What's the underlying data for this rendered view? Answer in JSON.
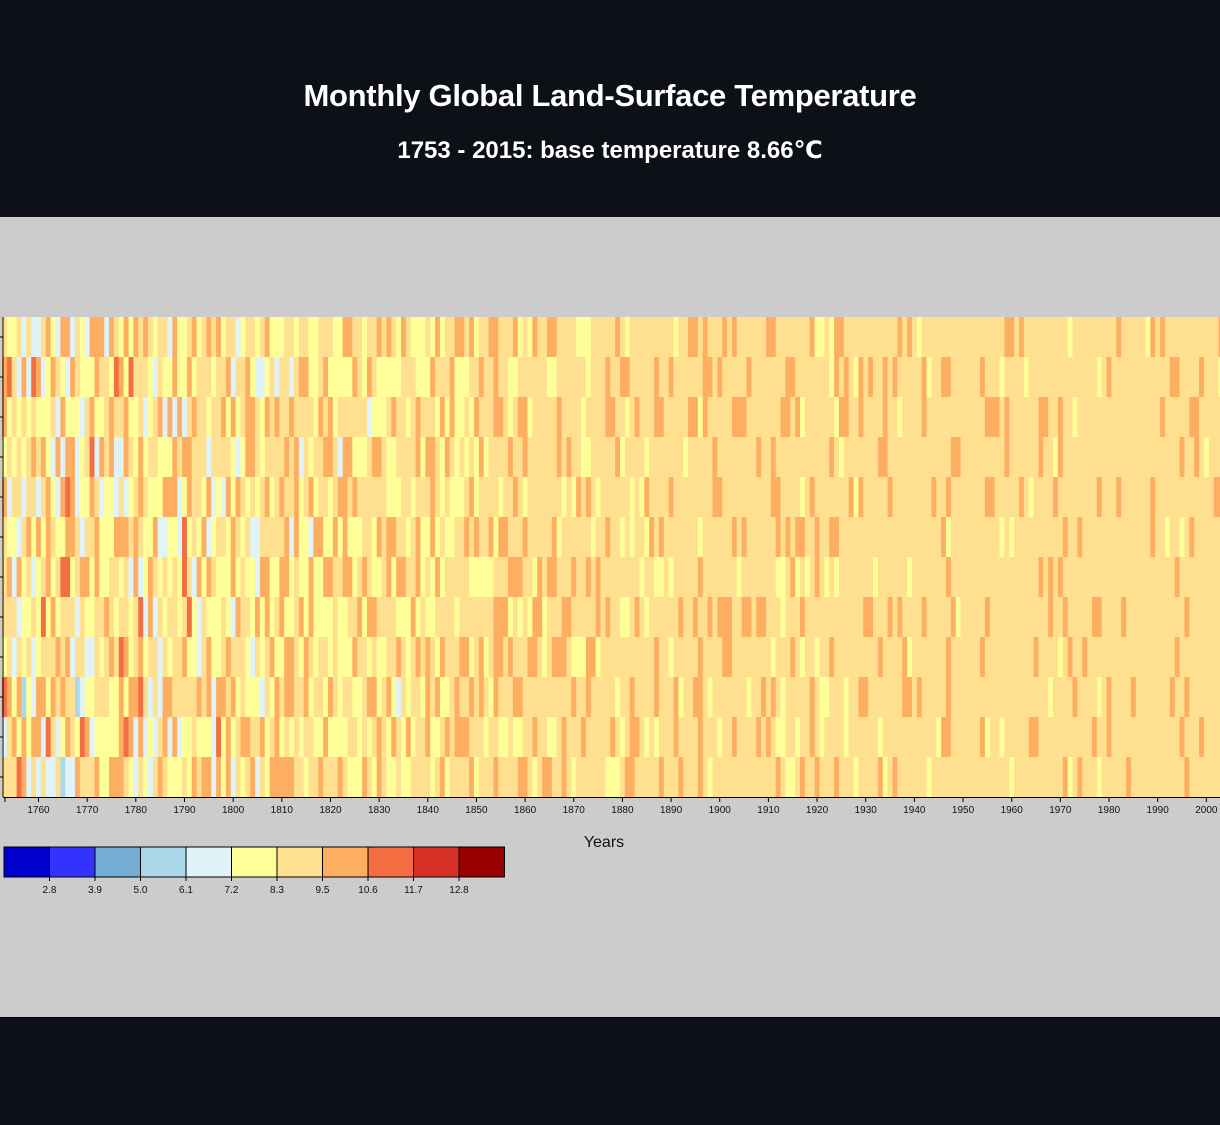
{
  "page": {
    "title": "Monthly Global Land-Surface Temperature",
    "subtitle": "1753 - 2015: base temperature 8.66℃"
  },
  "colors": {
    "background": "#0d1017",
    "panel": "#cccccc",
    "scale": [
      "#0000cc",
      "#3333ff",
      "#74add1",
      "#abd9e9",
      "#e0f3f8",
      "#ffff99",
      "#fee090",
      "#fdae61",
      "#f46d43",
      "#d73027",
      "#990000"
    ]
  },
  "chart_data": {
    "type": "heatmap",
    "title": "",
    "xlabel": "Years",
    "ylabel": "",
    "base_temperature": 8.66,
    "x_range": [
      1753,
      2015
    ],
    "rows": 12,
    "x_ticks": [
      "1760",
      "1770",
      "1780",
      "1790",
      "1800",
      "1810",
      "1820",
      "1830",
      "1840",
      "1850",
      "1860",
      "1870",
      "1880",
      "1890",
      "1900",
      "1910",
      "1920",
      "1930",
      "1940",
      "1950",
      "1960",
      "1970",
      "1980",
      "1990",
      "2000"
    ],
    "legend": {
      "thresholds": [
        "2.8",
        "3.9",
        "5.0",
        "6.1",
        "7.2",
        "8.3",
        "9.5",
        "10.6",
        "11.7",
        "12.8"
      ],
      "colors": [
        "#0000cc",
        "#3333ff",
        "#74add1",
        "#abd9e9",
        "#e0f3f8",
        "#ffff99",
        "#fee090",
        "#fdae61",
        "#f46d43",
        "#d73027",
        "#990000"
      ]
    }
  }
}
